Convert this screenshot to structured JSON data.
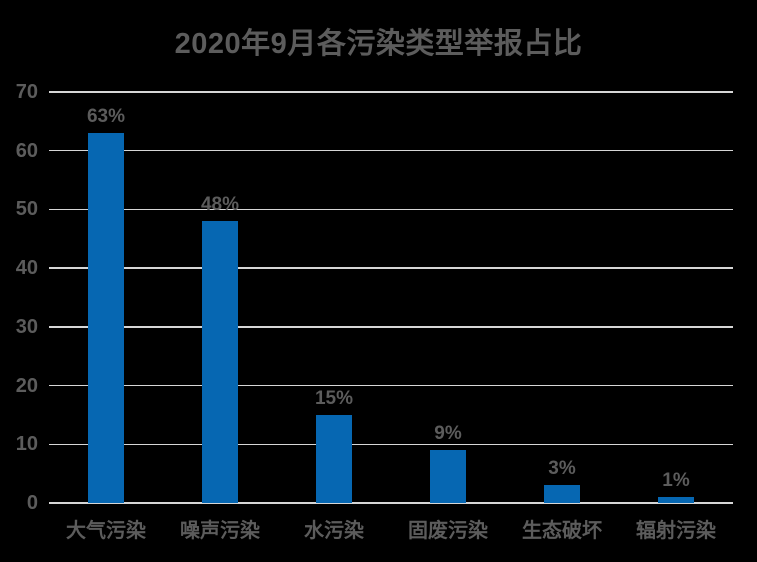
{
  "chart_data": {
    "type": "bar",
    "title": "2020年9月各污染类型举报占比",
    "categories": [
      "大气污染",
      "噪声污染",
      "水污染",
      "固废污染",
      "生态破坏",
      "辐射污染"
    ],
    "values": [
      63,
      48,
      15,
      9,
      3,
      1
    ],
    "value_labels": [
      "63%",
      "48%",
      "15%",
      "9%",
      "3%",
      "1%"
    ],
    "xlabel": "",
    "ylabel": "",
    "ylim": [
      0,
      70
    ],
    "yticks": [
      0,
      10,
      20,
      30,
      40,
      50,
      60,
      70
    ],
    "grid": "horizontal",
    "legend": "none",
    "colors": {
      "background": "#000000",
      "bar": "#0667b2",
      "text": "#5c5c5c",
      "gridline": "#d6d6d6"
    }
  }
}
